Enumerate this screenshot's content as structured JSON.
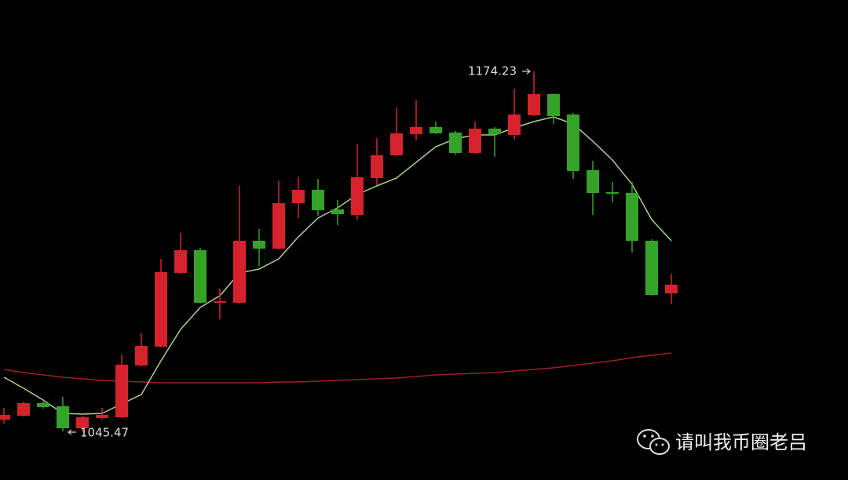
{
  "chart_data": {
    "type": "candlestick",
    "ylim": [
      1028.35,
      1199.71
    ],
    "up_color": "#d6222c",
    "down_color": "#35a229",
    "candles": {
      "open": [
        1049.91,
        1051.31,
        1055.79,
        1054.67,
        1046.83,
        1050.47,
        1050.75,
        1069.23,
        1075.95,
        1102.27,
        1110.39,
        1091.63,
        1091.63,
        1113.75,
        1110.95,
        1127.19,
        1131.95,
        1124.95,
        1122.99,
        1136.15,
        1144.27,
        1151.83,
        1154.35,
        1152.39,
        1145.11,
        1153.79,
        1151.55,
        1158.55,
        1166.11,
        1158.83,
        1138.95,
        1131.11,
        1130.83,
        1113.75,
        1094.99
      ],
      "close": [
        1051.59,
        1055.79,
        1054.39,
        1046.83,
        1050.75,
        1051.59,
        1069.51,
        1076.23,
        1102.55,
        1110.39,
        1091.63,
        1092.19,
        1113.75,
        1110.95,
        1127.19,
        1131.95,
        1124.67,
        1123.27,
        1136.43,
        1144.27,
        1152.11,
        1154.35,
        1152.11,
        1145.11,
        1153.79,
        1151.83,
        1158.83,
        1166.11,
        1158.27,
        1138.67,
        1130.83,
        1130.55,
        1113.75,
        1094.43,
        1098.07
      ],
      "high": [
        1054.11,
        1056.35,
        1056.91,
        1058.03,
        1051.31,
        1054.11,
        1073.15,
        1080.71,
        1107.31,
        1116.55,
        1111.23,
        1096.67,
        1133.35,
        1117.95,
        1135.03,
        1136.43,
        1135.87,
        1128.31,
        1148.19,
        1150.43,
        1161.35,
        1163.87,
        1156.31,
        1152.95,
        1156.31,
        1154.35,
        1168.07,
        1174.23,
        1166.39,
        1159.39,
        1142.31,
        1134.75,
        1134.75,
        1114.31,
        1101.99
      ],
      "low": [
        1048.51,
        1051.03,
        1053.83,
        1045.71,
        1045.47,
        1049.91,
        1050.47,
        1068.95,
        1075.67,
        1101.99,
        1091.35,
        1085.75,
        1091.35,
        1104.79,
        1110.67,
        1121.87,
        1122.71,
        1119.35,
        1121.03,
        1133.63,
        1143.99,
        1149.59,
        1151.83,
        1144.55,
        1144.83,
        1143.71,
        1149.87,
        1158.27,
        1155.47,
        1135.87,
        1122.99,
        1127.47,
        1109.55,
        1094.15,
        1091.07
      ]
    },
    "series": [
      {
        "color": "#a9d08e",
        "values": [
          1065.03,
          1061.11,
          1056.91,
          1052.15,
          1051.87,
          1052.15,
          1055.51,
          1058.87,
          1070.91,
          1082.11,
          1089.95,
          1094.15,
          1102.27,
          1103.67,
          1107.31,
          1115.15,
          1121.87,
          1125.51,
          1130.27,
          1133.35,
          1136.15,
          1141.75,
          1147.35,
          1150.15,
          1151.55,
          1151.55,
          1154.07,
          1156.31,
          1157.99,
          1155.47,
          1149.31,
          1142.59,
          1133.91,
          1121.31,
          1113.75
        ]
      },
      {
        "color": "#a11d28",
        "values": [
          1067.83,
          1066.71,
          1065.87,
          1065.03,
          1064.47,
          1063.91,
          1063.63,
          1063.35,
          1063.07,
          1063.07,
          1063.07,
          1063.07,
          1063.07,
          1063.07,
          1063.35,
          1063.35,
          1063.63,
          1063.91,
          1064.19,
          1064.47,
          1064.75,
          1065.31,
          1065.87,
          1066.15,
          1066.43,
          1066.71,
          1067.27,
          1067.83,
          1068.39,
          1069.23,
          1070.07,
          1070.91,
          1072.03,
          1072.87,
          1073.71
        ]
      }
    ],
    "watermark": "请叫我币圈老吕"
  }
}
